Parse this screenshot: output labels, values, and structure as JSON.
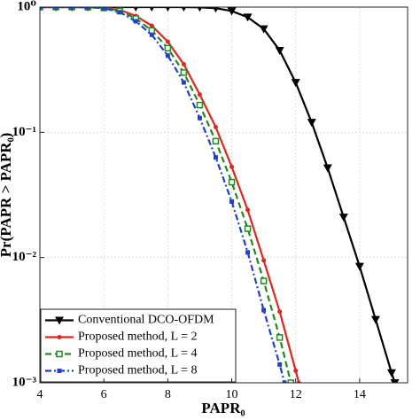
{
  "chart_data": {
    "type": "line",
    "xlabel": "PAPR₀",
    "ylabel": "Pr(PAPR > PAPR₀)",
    "xlim": [
      4,
      15.5
    ],
    "xticks": [
      4,
      6,
      8,
      10,
      12,
      14
    ],
    "ylim": [
      0.001,
      1
    ],
    "log_y": true,
    "yticks": [
      {
        "value": 1,
        "label": "10⁰"
      },
      {
        "value": 0.1,
        "label": "10⁻¹"
      },
      {
        "value": 0.01,
        "label": "10⁻²"
      },
      {
        "value": 0.001,
        "label": "10⁻³"
      }
    ],
    "grid": true,
    "legend_position": "lower left",
    "series": [
      {
        "name": "Conventional DCO-OFDM",
        "color": "#000000",
        "marker": "triangle-down",
        "dash": "solid",
        "x": [
          4,
          4.5,
          5,
          5.5,
          6,
          6.5,
          7,
          7.5,
          8,
          8.5,
          9,
          9.5,
          10,
          10.5,
          11,
          11.5,
          12,
          12.5,
          13,
          13.5,
          14,
          14.5,
          15,
          15.1
        ],
        "values": [
          1,
          1,
          1,
          1,
          1,
          1,
          1,
          1,
          1,
          0.999,
          0.995,
          0.98,
          0.93,
          0.83,
          0.67,
          0.45,
          0.25,
          0.12,
          0.052,
          0.021,
          0.0085,
          0.0032,
          0.0012,
          0.001
        ]
      },
      {
        "name": "Proposed method, L = 2",
        "color": "#e8231d",
        "marker": "circle",
        "dash": "solid",
        "x": [
          4,
          4.5,
          5,
          5.5,
          6,
          6.5,
          7,
          7.5,
          8,
          8.5,
          9,
          9.5,
          10,
          10.5,
          11,
          11.5,
          12,
          12.1
        ],
        "values": [
          1,
          1,
          1,
          0.999,
          0.99,
          0.95,
          0.85,
          0.71,
          0.53,
          0.35,
          0.2,
          0.11,
          0.053,
          0.024,
          0.0095,
          0.0037,
          0.00125,
          0.001
        ]
      },
      {
        "name": "Proposed method, L = 4",
        "color": "#1f8a1f",
        "marker": "square-open",
        "dash": "dashed",
        "x": [
          4,
          4.5,
          5,
          5.5,
          6,
          6.5,
          7,
          7.5,
          8,
          8.5,
          9,
          9.5,
          10,
          10.5,
          11,
          11.5,
          11.85
        ],
        "values": [
          1,
          1,
          1,
          0.998,
          0.985,
          0.93,
          0.81,
          0.65,
          0.47,
          0.3,
          0.165,
          0.085,
          0.04,
          0.017,
          0.0065,
          0.0023,
          0.001
        ]
      },
      {
        "name": "Proposed method, L = 8",
        "color": "#1f3fd6",
        "marker": "square",
        "dash": "dashdot",
        "x": [
          4,
          4.5,
          5,
          5.5,
          6,
          6.5,
          7,
          7.5,
          8,
          8.5,
          9,
          9.5,
          10,
          10.5,
          11,
          11.5,
          11.65
        ],
        "values": [
          1,
          1,
          1,
          0.997,
          0.98,
          0.91,
          0.77,
          0.6,
          0.41,
          0.25,
          0.13,
          0.063,
          0.028,
          0.011,
          0.0038,
          0.0014,
          0.001
        ]
      }
    ]
  }
}
